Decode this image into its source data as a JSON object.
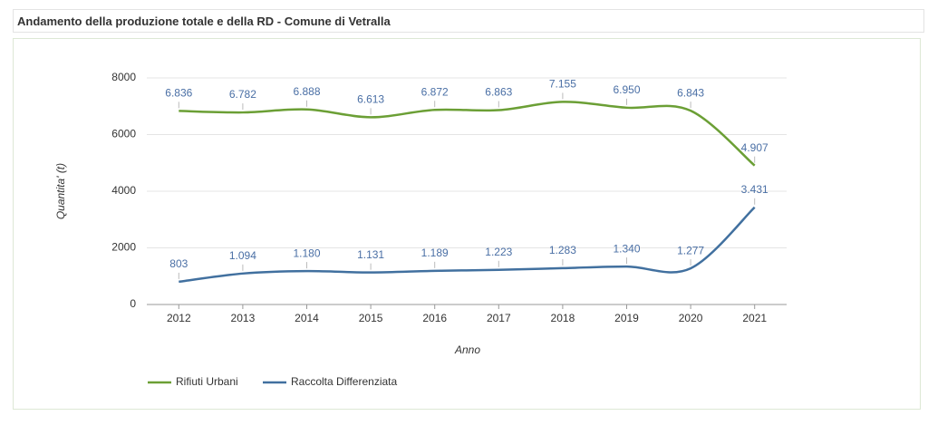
{
  "chart_data": {
    "type": "line",
    "title": "Andamento della produzione totale e della RD - Comune di Vetralla",
    "x_label": "Anno",
    "y_label": "Quantita' (t)",
    "categories": [
      "2012",
      "2013",
      "2014",
      "2015",
      "2016",
      "2017",
      "2018",
      "2019",
      "2020",
      "2021"
    ],
    "series": [
      {
        "name": "Rifiuti Urbani",
        "color": "#6b9f35",
        "values": [
          6836,
          6782,
          6888,
          6613,
          6872,
          6863,
          7155,
          6950,
          6843,
          4907
        ],
        "value_labels": [
          "6.836",
          "6.782",
          "6.888",
          "6.613",
          "6.872",
          "6.863",
          "7.155",
          "6.950",
          "6.843",
          "4.907"
        ]
      },
      {
        "name": "Raccolta Differenziata",
        "color": "#41709f",
        "values": [
          803,
          1094,
          1180,
          1131,
          1189,
          1223,
          1283,
          1340,
          1277,
          3431
        ],
        "value_labels": [
          "803",
          "1.094",
          "1.180",
          "1.131",
          "1.189",
          "1.223",
          "1.283",
          "1.340",
          "1.277",
          "3.431"
        ]
      }
    ],
    "ylim": [
      0,
      8000
    ],
    "yticks": [
      0,
      2000,
      4000,
      6000,
      8000
    ],
    "grid": true,
    "legend": "bottom-left"
  }
}
